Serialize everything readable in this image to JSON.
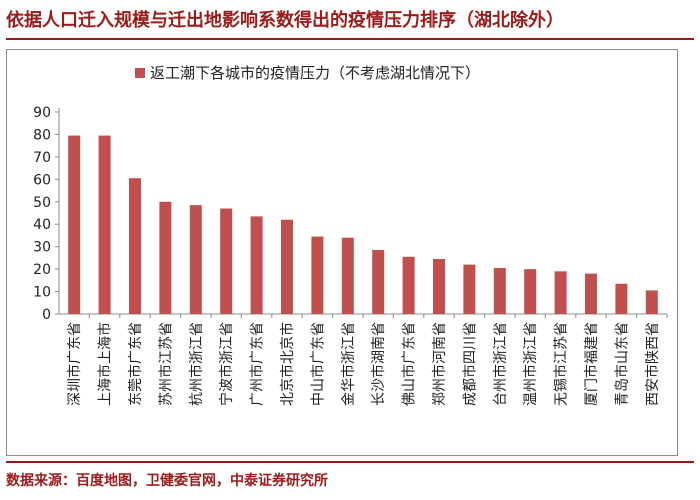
{
  "title": "依据人口迁入规模与迁出地影响系数得出的疫情压力排序（湖北除外）",
  "source": "数据来源：百度地图，卫健委官网，中泰证券研究所",
  "colors": {
    "accent": "#9b1b1b",
    "bar": "#c0504d",
    "axis": "#8c8c8c"
  },
  "chart_data": {
    "type": "bar",
    "categories": [
      "深圳市广东省",
      "上海市上海市",
      "东莞市广东省",
      "苏州市江苏省",
      "杭州市浙江省",
      "宁波市浙江省",
      "广州市广东省",
      "北京市北京市",
      "中山市广东省",
      "金华市浙江省",
      "长沙市湖南省",
      "佛山市广东省",
      "郑州市河南省",
      "成都市四川省",
      "台州市浙江省",
      "温州市浙江省",
      "无锡市江苏省",
      "厦门市福建省",
      "青岛市山东省",
      "西安市陕西省"
    ],
    "series": [
      {
        "name": "返工潮下各城市的疫情压力（不考虑湖北情况下）",
        "values": [
          79.5,
          79.5,
          60.5,
          50,
          48.5,
          47,
          43.5,
          42,
          34.5,
          34,
          28.5,
          25.5,
          24.5,
          22,
          20.5,
          20,
          19,
          18,
          13.5,
          10.5
        ]
      }
    ],
    "ylim": [
      0,
      90
    ],
    "yticks": [
      "0",
      "10",
      "20",
      "30",
      "40",
      "50",
      "60",
      "70",
      "80",
      "90"
    ],
    "legend": "top-center",
    "grid": false
  }
}
